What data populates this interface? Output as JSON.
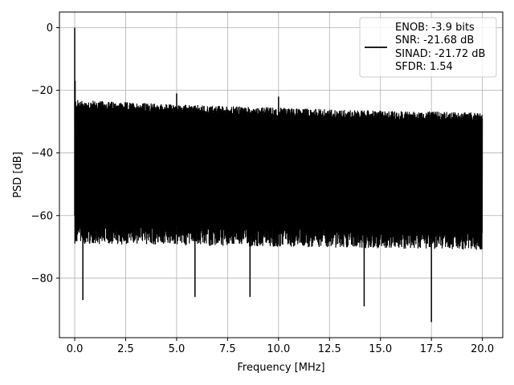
{
  "chart_data": {
    "type": "line",
    "xlabel": "Frequency [MHz]",
    "ylabel": "PSD [dB]",
    "xlim": [
      -0.75,
      21.0
    ],
    "ylim": [
      -99,
      5
    ],
    "xticks": [
      0.0,
      2.5,
      5.0,
      7.5,
      10.0,
      12.5,
      15.0,
      17.5,
      20.0
    ],
    "xtick_labels": [
      "0.0",
      "2.5",
      "5.0",
      "7.5",
      "10.0",
      "12.5",
      "15.0",
      "17.5",
      "20.0"
    ],
    "yticks": [
      0,
      -20,
      -40,
      -60,
      -80
    ],
    "ytick_labels": [
      "0",
      "−20",
      "−40",
      "−60",
      "−80"
    ],
    "grid": true,
    "legend_position": "top-right",
    "line_color": "#000000",
    "series": [
      {
        "name": "ENOB: -3.9 bits\nSNR: -21.68 dB\nSINAD: -21.72 dB\nSFDR: 1.54",
        "legend_lines": [
          "ENOB: -3.9 bits",
          "SNR: -21.68 dB",
          "SINAD: -21.72 dB",
          "SFDR: 1.54"
        ],
        "x_range": [
          0.0,
          20.0
        ],
        "noise_floor_top_db": {
          "0.0": -24.5,
          "5.0": -26,
          "10.0": -27,
          "15.0": -28,
          "20.0": -28.5
        },
        "noise_floor_bottom_db": {
          "0.0": -63,
          "20.0": -65
        },
        "peaks": [
          {
            "x": 0.0,
            "y": 0
          },
          {
            "x": 0.02,
            "y": -17
          },
          {
            "x": 5.0,
            "y": -21
          },
          {
            "x": 10.0,
            "y": -22
          }
        ],
        "dips": [
          {
            "x": 0.4,
            "y": -87
          },
          {
            "x": 5.9,
            "y": -86
          },
          {
            "x": 8.6,
            "y": -86
          },
          {
            "x": 14.2,
            "y": -89
          },
          {
            "x": 17.5,
            "y": -94
          }
        ]
      }
    ]
  }
}
